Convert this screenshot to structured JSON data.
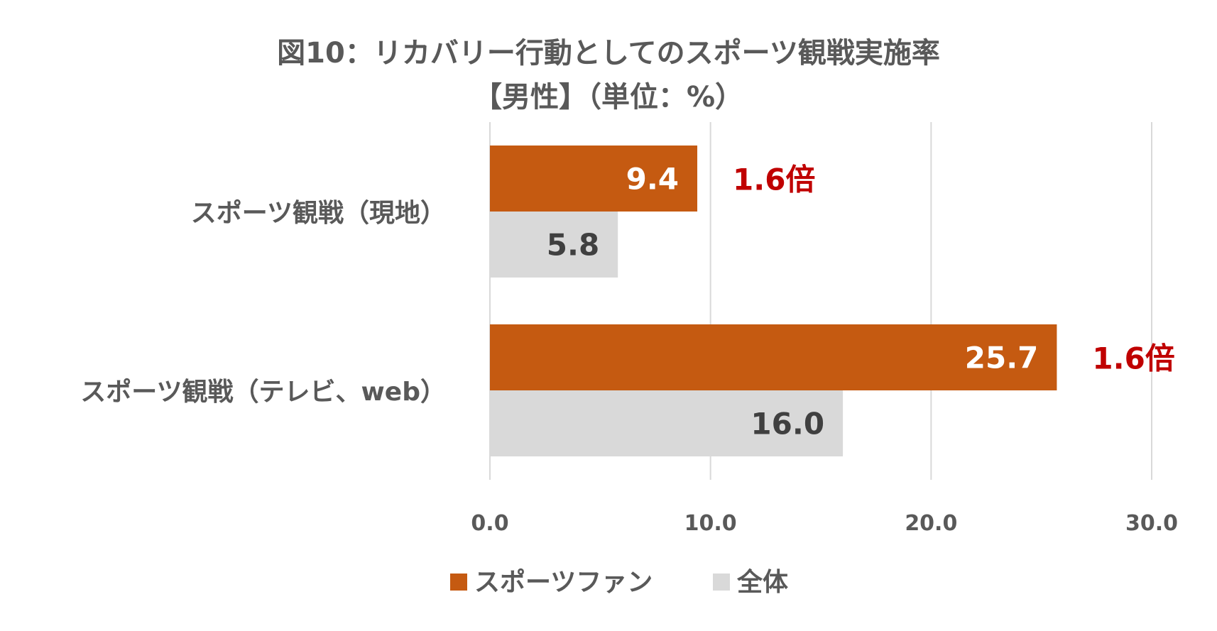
{
  "colors": {
    "fan": "#c55a11",
    "all": "#d9d9d9",
    "ratio": "#c00000",
    "grid": "#d9d9d9",
    "text": "#595959"
  },
  "chart_data": {
    "type": "bar",
    "orientation": "horizontal",
    "title": "図10：リカバリー行動としてのスポーツ観戦実施率",
    "subtitle": "【男性】（単位：%）",
    "categories": [
      "スポーツ観戦（現地）",
      "スポーツ観戦（テレビ、web）"
    ],
    "series": [
      {
        "name": "スポーツファン",
        "values": [
          9.4,
          25.7
        ],
        "labels": [
          "9.4",
          "25.7"
        ],
        "color": "#c55a11"
      },
      {
        "name": "全体",
        "values": [
          5.8,
          16.0
        ],
        "labels": [
          "5.8",
          "16.0"
        ],
        "color": "#d9d9d9"
      }
    ],
    "annotations": [
      "1.6倍",
      "1.6倍"
    ],
    "xlim": [
      0,
      30
    ],
    "xticks": [
      0,
      10,
      20,
      30
    ],
    "xtick_labels": [
      "0.0",
      "10.0",
      "20.0",
      "30.0"
    ],
    "grid": true,
    "legend": "bottom"
  }
}
